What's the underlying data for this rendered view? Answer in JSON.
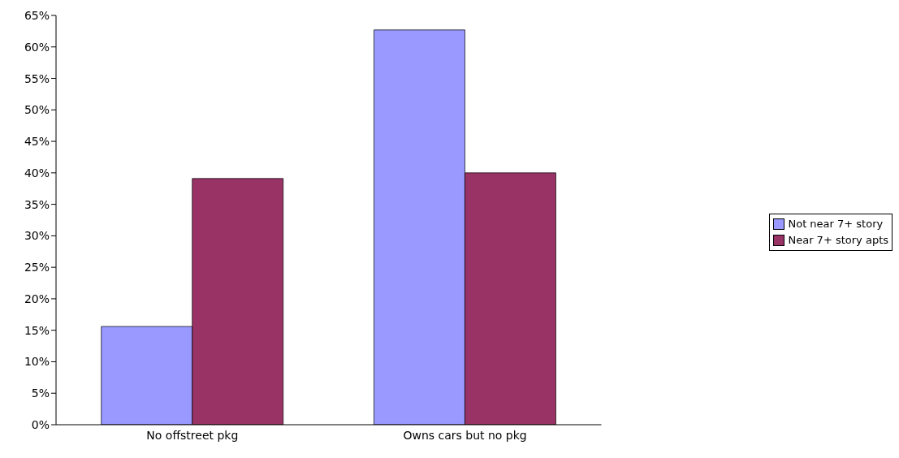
{
  "chart_data": {
    "type": "bar",
    "categories": [
      "No offstreet pkg",
      "Owns cars but no pkg"
    ],
    "series": [
      {
        "name": "Not near 7+ story",
        "color": "#9999ff",
        "values": [
          15.6,
          62.7
        ]
      },
      {
        "name": "Near 7+ story apts",
        "color": "#993366",
        "values": [
          39.1,
          40.0
        ]
      }
    ],
    "ylim": [
      0,
      65
    ],
    "yticks": [
      {
        "value": 0,
        "label": "0%"
      },
      {
        "value": 5,
        "label": "5%"
      },
      {
        "value": 10,
        "label": "10%"
      },
      {
        "value": 15,
        "label": "15%"
      },
      {
        "value": 20,
        "label": "20%"
      },
      {
        "value": 25,
        "label": "25%"
      },
      {
        "value": 30,
        "label": "30%"
      },
      {
        "value": 35,
        "label": "35%"
      },
      {
        "value": 40,
        "label": "40%"
      },
      {
        "value": 45,
        "label": "45%"
      },
      {
        "value": 50,
        "label": "50%"
      },
      {
        "value": 55,
        "label": "55%"
      },
      {
        "value": 60,
        "label": "60%"
      },
      {
        "value": 65,
        "label": "65%"
      }
    ],
    "grid": false,
    "legend": "right"
  }
}
